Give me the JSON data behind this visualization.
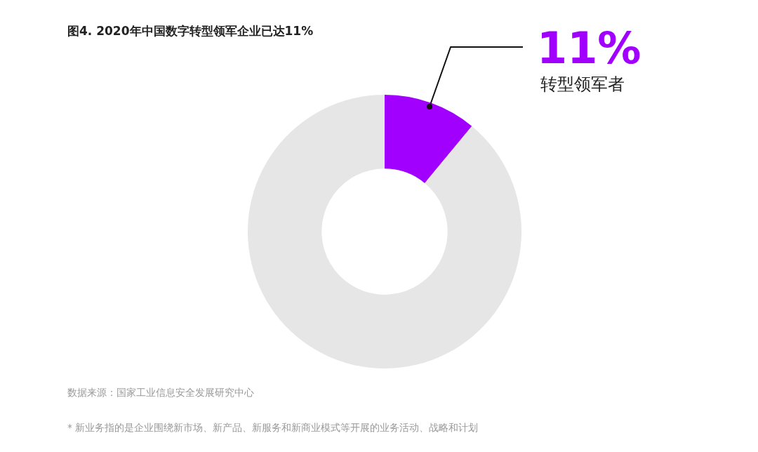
{
  "chart_data": {
    "type": "donut",
    "title": "图4. 2020年中国数字转型领军企业已达11%",
    "categories": [
      "转型领军者",
      null
    ],
    "values": [
      11,
      89
    ],
    "colors": [
      "#a100ff",
      "#e6e6e6"
    ],
    "value_labels": [
      "11%",
      null
    ],
    "annotations": [
      "数据来源：国家工业信息安全发展研究中心",
      "* 新业务指的是企业围绕新市场、新产品、新服务和新商业模式等开展的业务活动、战略和计划"
    ]
  }
}
